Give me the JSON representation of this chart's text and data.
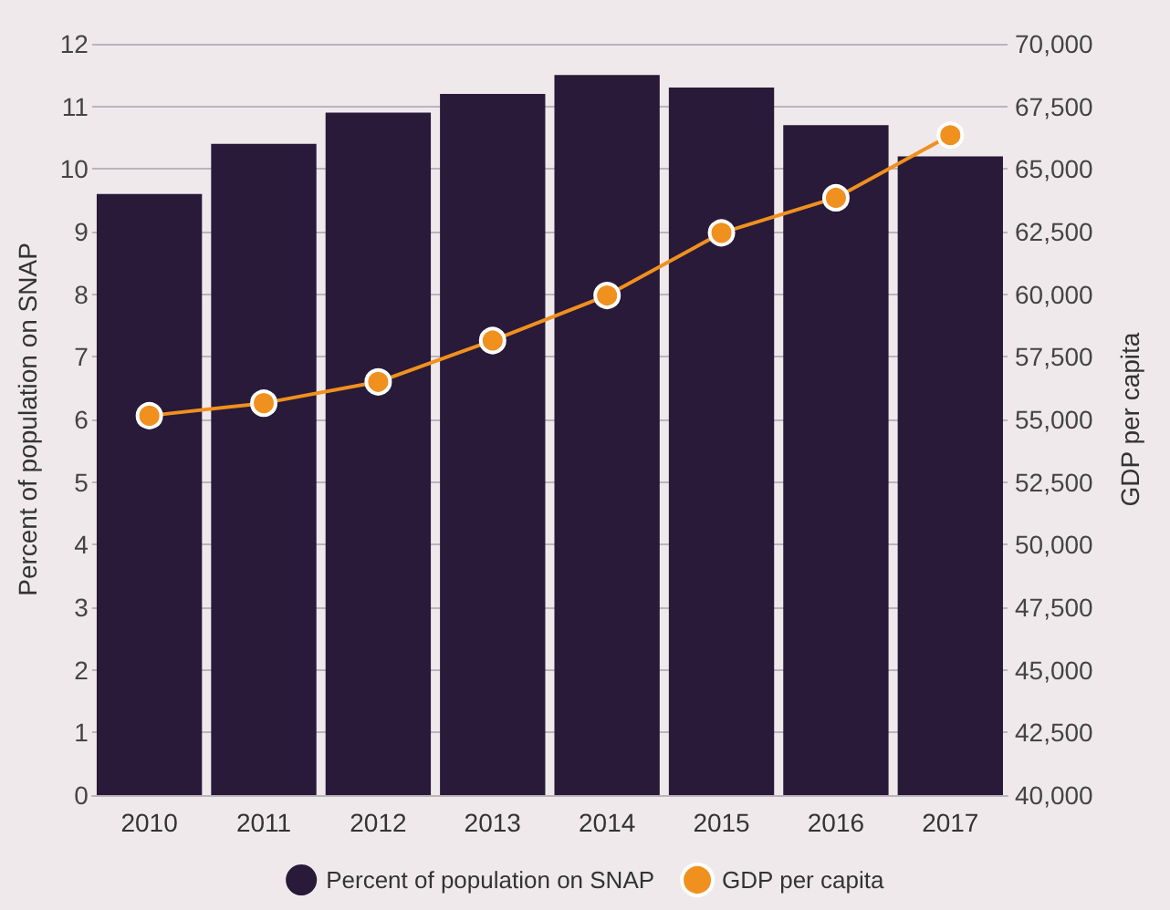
{
  "chart_data": {
    "type": "bar",
    "ylabel": "Percent of population on SNAP",
    "y2label": "GDP per capita",
    "categories": [
      "2010",
      "2011",
      "2012",
      "2013",
      "2014",
      "2015",
      "2016",
      "2017"
    ],
    "series": [
      {
        "name": "Percent of population on SNAP",
        "color": "#281a38",
        "values": [
          9.6,
          10.4,
          10.9,
          11.2,
          11.5,
          11.3,
          10.7,
          10.2
        ]
      },
      {
        "name": "GDP per capita",
        "type": "line",
        "axis": "y2",
        "color": "#f0901e",
        "marker": "circle",
        "line_style": "solid",
        "values": [
          55150,
          55650,
          56500,
          58150,
          59950,
          62450,
          63850,
          66350
        ]
      }
    ],
    "ylim": [
      0,
      12
    ],
    "yticks": [
      0,
      1,
      2,
      3,
      4,
      5,
      6,
      7,
      8,
      9,
      10,
      11,
      12
    ],
    "y2lim": [
      40000,
      70000
    ],
    "y2ticks": [
      {
        "value": 40000,
        "label": "40,000"
      },
      {
        "value": 42500,
        "label": "42,500"
      },
      {
        "value": 45000,
        "label": "45,000"
      },
      {
        "value": 47500,
        "label": "47,500"
      },
      {
        "value": 50000,
        "label": "50,000"
      },
      {
        "value": 52500,
        "label": "52,500"
      },
      {
        "value": 55000,
        "label": "55,000"
      },
      {
        "value": 57500,
        "label": "57,500"
      },
      {
        "value": 60000,
        "label": "60,000"
      },
      {
        "value": 62500,
        "label": "62,500"
      },
      {
        "value": 65000,
        "label": "65,000"
      },
      {
        "value": 67500,
        "label": "67,500"
      },
      {
        "value": 70000,
        "label": "70,000"
      }
    ],
    "grid": "y",
    "legend": "bottom"
  }
}
